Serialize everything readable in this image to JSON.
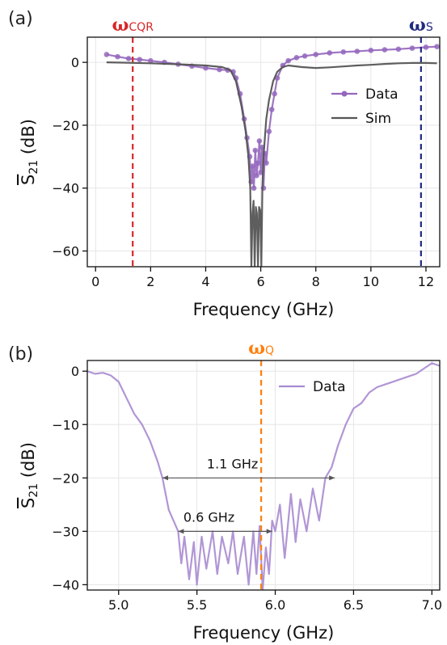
{
  "chart_data": [
    {
      "type": "scatter",
      "panel_label": "(a)",
      "xlabel": "Frequency (GHz)",
      "ylabel_main": "S",
      "ylabel_sub": "21",
      "ylabel_unit": " (dB)",
      "xlim": [
        -0.3,
        12.5
      ],
      "ylim": [
        -65,
        8
      ],
      "xticks": [
        "0",
        "2",
        "4",
        "6",
        "8",
        "10",
        "12"
      ],
      "xtick_values": [
        0,
        2,
        4,
        6,
        8,
        10,
        12
      ],
      "yticks": [
        "0",
        "−20",
        "−40",
        "−60"
      ],
      "ytick_values": [
        0,
        -20,
        -40,
        -60
      ],
      "grid": true,
      "legend_position": "center-right",
      "vlines": [
        {
          "x": 1.35,
          "symbol": "ω",
          "sub": "CQR",
          "color": "#d62728",
          "style": "dashed"
        },
        {
          "x": 11.82,
          "symbol": "ω",
          "sub": "S",
          "color": "#1f2a80",
          "style": "dashed"
        }
      ],
      "series": [
        {
          "name": "Data",
          "color": "#9467bd",
          "kind": "markers+line",
          "x": [
            0.4,
            0.8,
            1.2,
            1.6,
            2.0,
            2.5,
            3.0,
            3.5,
            4.0,
            4.5,
            4.8,
            5.0,
            5.1,
            5.25,
            5.4,
            5.5,
            5.6,
            5.65,
            5.7,
            5.75,
            5.8,
            5.85,
            5.9,
            5.95,
            6.0,
            6.05,
            6.1,
            6.15,
            6.2,
            6.3,
            6.4,
            6.5,
            6.6,
            6.8,
            7.0,
            7.3,
            7.6,
            8.0,
            8.5,
            9.0,
            9.5,
            10.0,
            10.5,
            11.0,
            11.5,
            12.0,
            12.4
          ],
          "y": [
            2.5,
            1.8,
            1.2,
            0.9,
            0.5,
            0.0,
            -0.6,
            -1.2,
            -1.8,
            -2.3,
            -2.5,
            -3.0,
            -5.0,
            -10.0,
            -18.0,
            -24.0,
            -30.0,
            -38.0,
            -33.0,
            -40.0,
            -28.0,
            -36.0,
            -32.0,
            -25.0,
            -35.0,
            -27.0,
            -40.0,
            -29.0,
            -32.0,
            -22.0,
            -15.0,
            -10.0,
            -5.0,
            -1.0,
            0.5,
            1.5,
            2.0,
            2.5,
            3.0,
            3.3,
            3.5,
            3.8,
            4.0,
            4.2,
            4.5,
            4.8,
            5.0
          ]
        },
        {
          "name": "Sim",
          "color": "#555555",
          "kind": "line",
          "x": [
            0.4,
            1.0,
            2.0,
            3.0,
            4.0,
            4.6,
            4.9,
            5.1,
            5.3,
            5.45,
            5.55,
            5.62,
            5.66,
            5.7,
            5.74,
            5.78,
            5.82,
            5.86,
            5.9,
            5.94,
            5.98,
            6.02,
            6.06,
            6.1,
            6.15,
            6.2,
            6.3,
            6.45,
            6.6,
            6.8,
            7.0,
            7.5,
            8.0,
            8.5,
            9.0,
            9.5,
            10.0,
            10.5,
            11.0,
            11.5,
            12.0,
            12.4
          ],
          "y": [
            0.0,
            -0.1,
            -0.3,
            -0.6,
            -1.0,
            -1.5,
            -2.5,
            -6.0,
            -14.0,
            -22.0,
            -30.0,
            -40.0,
            -65.0,
            -48.0,
            -44.0,
            -65.0,
            -46.0,
            -48.0,
            -65.0,
            -46.0,
            -47.0,
            -65.0,
            -40.0,
            -30.0,
            -24.0,
            -18.0,
            -12.0,
            -6.0,
            -3.0,
            -1.5,
            -1.0,
            -1.5,
            -1.8,
            -1.6,
            -1.3,
            -1.0,
            -0.8,
            -0.5,
            -0.3,
            -0.2,
            -0.2,
            -0.3
          ]
        }
      ]
    },
    {
      "type": "line",
      "panel_label": "(b)",
      "xlabel": "Frequency (GHz)",
      "ylabel_main": "S",
      "ylabel_sub": "21",
      "ylabel_unit": " (dB)",
      "xlim": [
        4.8,
        7.05
      ],
      "ylim": [
        -41,
        2
      ],
      "xticks": [
        "5.0",
        "5.5",
        "6.0",
        "6.5",
        "7.0"
      ],
      "xtick_values": [
        5.0,
        5.5,
        6.0,
        6.5,
        7.0
      ],
      "yticks": [
        "0",
        "−10",
        "−20",
        "−30",
        "−40"
      ],
      "ytick_values": [
        0,
        -10,
        -20,
        -30,
        -40
      ],
      "grid": true,
      "legend_position": "top-center",
      "vlines": [
        {
          "x": 5.91,
          "symbol": "ω",
          "sub": "Q",
          "color": "#ff7f0e",
          "style": "dashed"
        }
      ],
      "annotations": [
        {
          "text": "1.1 GHz",
          "x1": 5.28,
          "x2": 6.38,
          "y": -20
        },
        {
          "text": "0.6 GHz",
          "x1": 5.38,
          "x2": 5.98,
          "y": -30
        }
      ],
      "series": [
        {
          "name": "Data",
          "color": "#a88bd0",
          "x": [
            4.8,
            4.85,
            4.9,
            4.95,
            5.0,
            5.05,
            5.1,
            5.15,
            5.2,
            5.25,
            5.28,
            5.3,
            5.32,
            5.35,
            5.38,
            5.4,
            5.42,
            5.45,
            5.48,
            5.5,
            5.53,
            5.56,
            5.6,
            5.63,
            5.66,
            5.7,
            5.73,
            5.76,
            5.8,
            5.83,
            5.86,
            5.88,
            5.9,
            5.92,
            5.94,
            5.96,
            5.98,
            6.0,
            6.03,
            6.06,
            6.1,
            6.13,
            6.16,
            6.2,
            6.24,
            6.28,
            6.32,
            6.36,
            6.4,
            6.45,
            6.5,
            6.55,
            6.6,
            6.65,
            6.7,
            6.75,
            6.8,
            6.85,
            6.9,
            6.95,
            7.0,
            7.05
          ],
          "y": [
            0.0,
            -0.5,
            -0.3,
            -0.8,
            -2.0,
            -5.0,
            -8.0,
            -10.0,
            -13.0,
            -17.0,
            -20.0,
            -23.0,
            -26.0,
            -28.0,
            -30.0,
            -36.0,
            -31.0,
            -39.0,
            -32.0,
            -40.0,
            -31.0,
            -37.0,
            -30.0,
            -38.0,
            -31.0,
            -36.0,
            -30.0,
            -38.0,
            -31.0,
            -40.0,
            -30.0,
            -38.0,
            -29.0,
            -41.0,
            -33.0,
            -38.0,
            -28.0,
            -30.0,
            -25.0,
            -35.0,
            -23.0,
            -32.0,
            -24.0,
            -30.0,
            -22.0,
            -28.0,
            -20.0,
            -18.0,
            -14.0,
            -10.0,
            -7.0,
            -6.0,
            -4.0,
            -3.0,
            -2.5,
            -2.0,
            -1.5,
            -1.0,
            -0.5,
            0.5,
            1.5,
            1.0
          ]
        }
      ]
    }
  ]
}
